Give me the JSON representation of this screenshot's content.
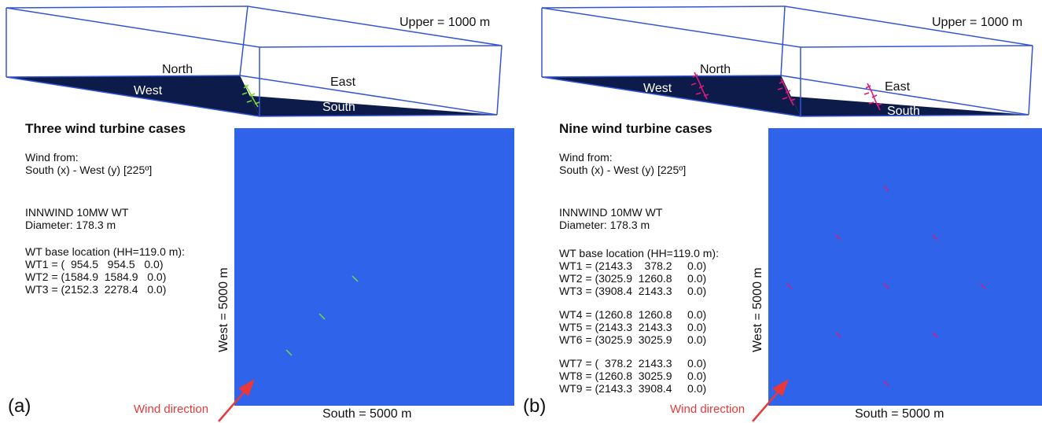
{
  "panel_a": {
    "letter": "(a)",
    "title": "Three wind turbine cases",
    "upper": "Upper = 1000 m",
    "faces": {
      "north": "North",
      "west": "West",
      "east": "East",
      "south": "South"
    },
    "wind_from_label": "Wind from:",
    "wind_from_value": "South (x) - West (y) [225º]",
    "turbine_model": "INNWIND 10MW WT",
    "diameter": "Diameter: 178.3 m",
    "base_header": "WT base location (HH=119.0 m):",
    "turbines": [
      "WT1 = (  954.5   954.5   0.0)",
      "WT2 = (1584.9  1584.9   0.0)",
      "WT3 = (2152.3  2278.4   0.0)"
    ],
    "west_axis": "West = 5000 m",
    "south_axis": "South = 5000 m",
    "wind_direction": "Wind direction",
    "marker_color": "#7fd63a",
    "domain_color": "#2e63ea"
  },
  "panel_b": {
    "letter": "(b)",
    "title": "Nine wind turbine cases",
    "upper": "Upper = 1000 m",
    "faces": {
      "north": "North",
      "west": "West",
      "east": "East",
      "south": "South"
    },
    "wind_from_label": "Wind from:",
    "wind_from_value": "South (x) - West (y) [225º]",
    "turbine_model": "INNWIND 10MW WT",
    "diameter": "Diameter: 178.3 m",
    "base_header": "WT base location (HH=119.0 m):",
    "turbines_g1": [
      "WT1 = (2143.3    378.2     0.0)",
      "WT2 = (3025.9  1260.8     0.0)",
      "WT3 = (3908.4  2143.3     0.0)"
    ],
    "turbines_g2": [
      "WT4 = (1260.8  1260.8     0.0)",
      "WT5 = (2143.3  2143.3     0.0)",
      "WT6 = (3025.9  3025.9     0.0)"
    ],
    "turbines_g3": [
      "WT7 = (  378.2  2143.3     0.0)",
      "WT8 = (1260.8  3025.9     0.0)",
      "WT9 = (2143.3  3908.4     0.0)"
    ],
    "west_axis": "West = 5000 m",
    "south_axis": "South = 5000 m",
    "wind_direction": "Wind direction",
    "marker_color": "#e0187a",
    "domain_color": "#2e63ea"
  }
}
